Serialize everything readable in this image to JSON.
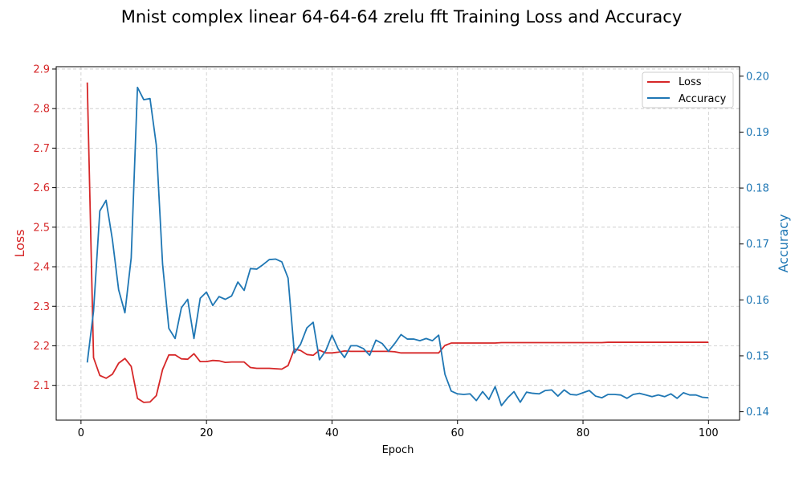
{
  "chart_data": {
    "type": "line",
    "title": "Mnist complex linear 64-64-64 zrelu fft Training Loss and Accuracy",
    "xlabel": "Epoch",
    "ylabel_left": "Loss",
    "ylabel_right": "Accuracy",
    "xlim": [
      -3.95,
      104.95
    ],
    "ylim_left": [
      2.012,
      2.906
    ],
    "ylim_right": [
      0.1385,
      0.2017
    ],
    "x_ticks": [
      "0",
      "20",
      "40",
      "60",
      "80",
      "100"
    ],
    "x_tick_values": [
      0,
      20,
      40,
      60,
      80,
      100
    ],
    "y_left_ticks": [
      "2.1",
      "2.2",
      "2.3",
      "2.4",
      "2.5",
      "2.6",
      "2.7",
      "2.8",
      "2.9"
    ],
    "y_left_tick_values": [
      2.1,
      2.2,
      2.3,
      2.4,
      2.5,
      2.6,
      2.7,
      2.8,
      2.9
    ],
    "y_right_ticks": [
      "0.14",
      "0.15",
      "0.16",
      "0.17",
      "0.18",
      "0.19",
      "0.20"
    ],
    "y_right_tick_values": [
      0.14,
      0.15,
      0.16,
      0.17,
      0.18,
      0.19,
      0.2
    ],
    "grid": true,
    "legend_position": "top-right",
    "colors": {
      "loss": "#d62728",
      "accuracy": "#1f77b4"
    },
    "x": [
      1,
      2,
      3,
      4,
      5,
      6,
      7,
      8,
      9,
      10,
      11,
      12,
      13,
      14,
      15,
      16,
      17,
      18,
      19,
      20,
      21,
      22,
      23,
      24,
      25,
      26,
      27,
      28,
      29,
      30,
      31,
      32,
      33,
      34,
      35,
      36,
      37,
      38,
      39,
      40,
      41,
      42,
      43,
      44,
      45,
      46,
      47,
      48,
      49,
      50,
      51,
      52,
      53,
      54,
      55,
      56,
      57,
      58,
      59,
      60,
      61,
      62,
      63,
      64,
      65,
      66,
      67,
      68,
      69,
      70,
      71,
      72,
      73,
      74,
      75,
      76,
      77,
      78,
      79,
      80,
      81,
      82,
      83,
      84,
      85,
      86,
      87,
      88,
      89,
      90,
      91,
      92,
      93,
      94,
      95,
      96,
      97,
      98,
      99,
      100
    ],
    "series": [
      {
        "name": "Loss",
        "axis": "left",
        "values": [
          2.866,
          2.17,
          2.125,
          2.118,
          2.128,
          2.156,
          2.168,
          2.148,
          2.067,
          2.057,
          2.058,
          2.074,
          2.14,
          2.177,
          2.177,
          2.167,
          2.166,
          2.18,
          2.16,
          2.16,
          2.163,
          2.162,
          2.158,
          2.159,
          2.159,
          2.159,
          2.145,
          2.143,
          2.143,
          2.143,
          2.142,
          2.141,
          2.15,
          2.192,
          2.188,
          2.178,
          2.176,
          2.189,
          2.182,
          2.182,
          2.184,
          2.187,
          2.186,
          2.186,
          2.186,
          2.186,
          2.186,
          2.186,
          2.186,
          2.185,
          2.182,
          2.182,
          2.182,
          2.182,
          2.182,
          2.182,
          2.182,
          2.201,
          2.207,
          2.207,
          2.207,
          2.207,
          2.207,
          2.207,
          2.207,
          2.207,
          2.208,
          2.208,
          2.208,
          2.208,
          2.208,
          2.208,
          2.208,
          2.208,
          2.208,
          2.208,
          2.208,
          2.208,
          2.208,
          2.208,
          2.208,
          2.208,
          2.208,
          2.209,
          2.209,
          2.209,
          2.209,
          2.209,
          2.209,
          2.209,
          2.209,
          2.209,
          2.209,
          2.209,
          2.209,
          2.209,
          2.209,
          2.209,
          2.209,
          2.209
        ]
      },
      {
        "name": "Accuracy",
        "axis": "right",
        "values": [
          0.1488,
          0.158,
          0.1759,
          0.1778,
          0.1708,
          0.1618,
          0.1577,
          0.1675,
          0.198,
          0.1958,
          0.196,
          0.1877,
          0.1664,
          0.1549,
          0.1531,
          0.1586,
          0.1601,
          0.1531,
          0.1603,
          0.1614,
          0.159,
          0.1606,
          0.1601,
          0.1607,
          0.1632,
          0.1617,
          0.1656,
          0.1655,
          0.1663,
          0.1672,
          0.1673,
          0.1668,
          0.1639,
          0.1505,
          0.1521,
          0.155,
          0.156,
          0.1493,
          0.1509,
          0.1537,
          0.1512,
          0.1497,
          0.1518,
          0.1518,
          0.1513,
          0.1501,
          0.1528,
          0.1522,
          0.1508,
          0.1522,
          0.1538,
          0.153,
          0.153,
          0.1527,
          0.1531,
          0.1527,
          0.1537,
          0.1467,
          0.1437,
          0.1432,
          0.1431,
          0.1432,
          0.142,
          0.1436,
          0.1422,
          0.1445,
          0.1411,
          0.1425,
          0.1436,
          0.1417,
          0.1435,
          0.1433,
          0.1432,
          0.1438,
          0.1439,
          0.1428,
          0.1439,
          0.1431,
          0.143,
          0.1434,
          0.1438,
          0.1428,
          0.1425,
          0.1431,
          0.1431,
          0.143,
          0.1424,
          0.1431,
          0.1433,
          0.143,
          0.1427,
          0.143,
          0.1427,
          0.1432,
          0.1424,
          0.1434,
          0.143,
          0.143,
          0.1426,
          0.1425
        ]
      }
    ]
  }
}
